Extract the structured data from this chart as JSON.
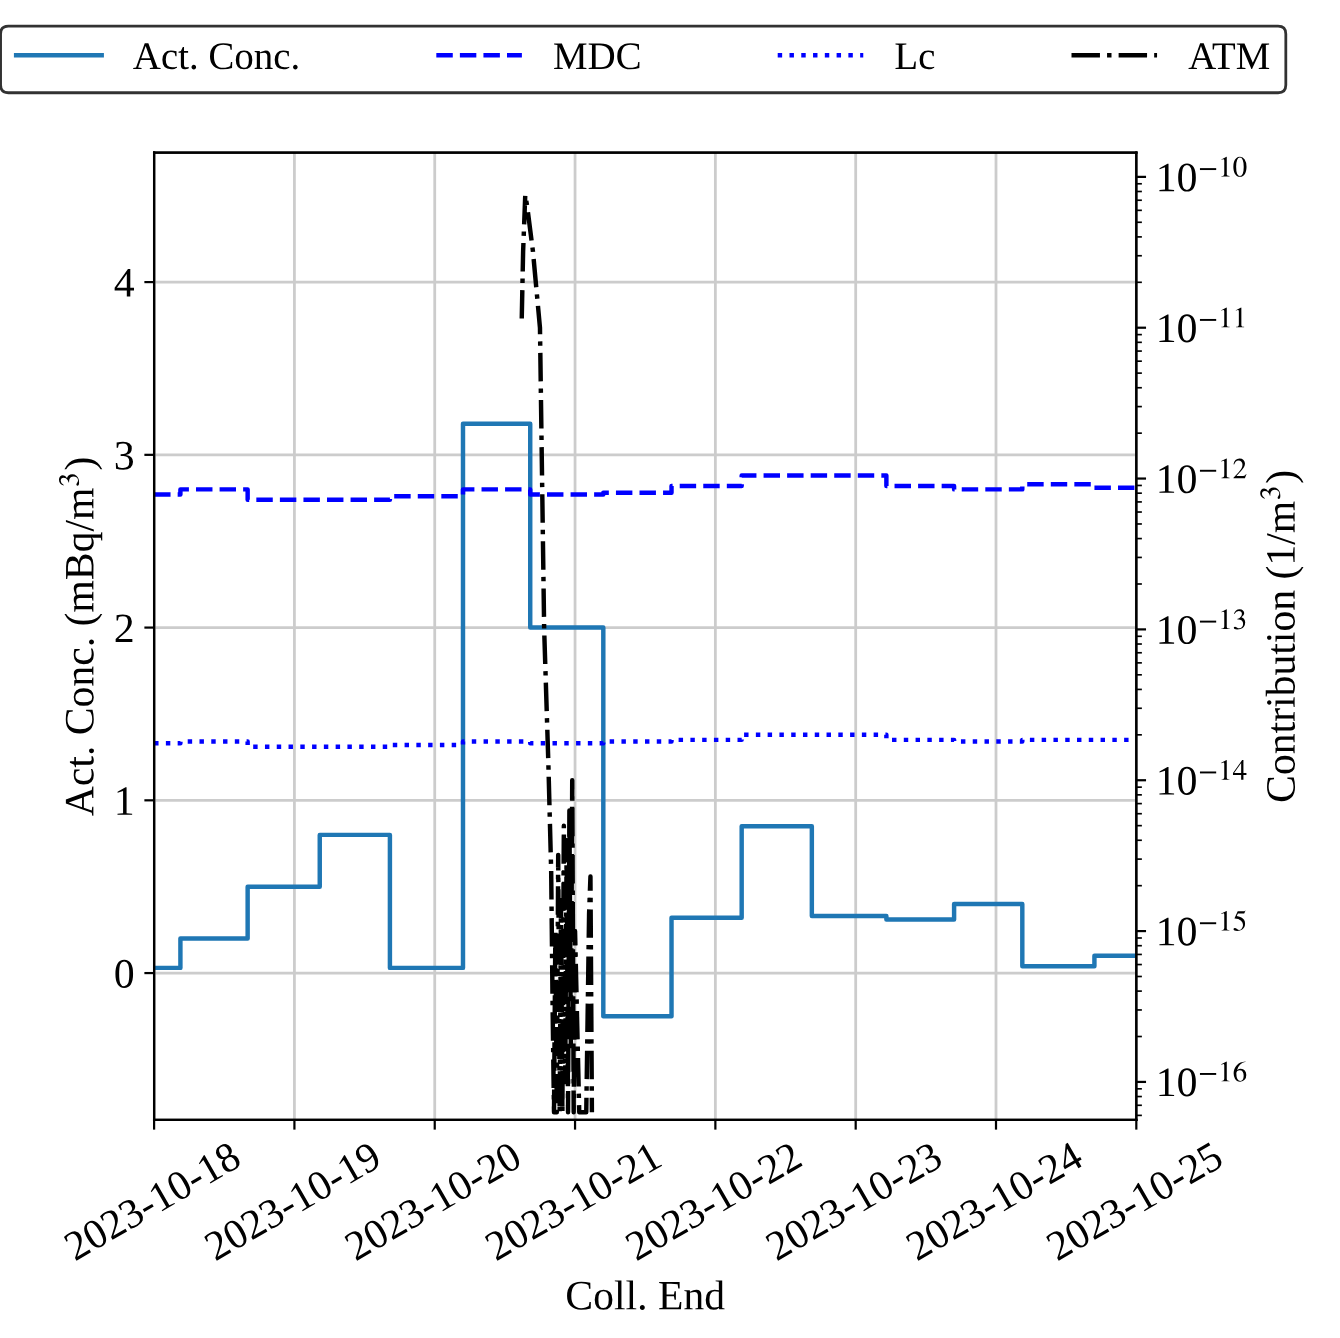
{
  "chart_data": {
    "type": "step",
    "xlabel": "Coll. End",
    "ylabel": "Act. Conc. (mBq/m$^{3}$)",
    "y2label": "Contribution (1/m$^{3}$)",
    "xlim": [
      "2023-10-18",
      "2023-10-25"
    ],
    "xticks": [
      {
        "value": "2023-10-18",
        "label": "2023-10-18"
      },
      {
        "value": "2023-10-19",
        "label": "2023-10-19"
      },
      {
        "value": "2023-10-20",
        "label": "2023-10-20"
      },
      {
        "value": "2023-10-21",
        "label": "2023-10-21"
      },
      {
        "value": "2023-10-22",
        "label": "2023-10-22"
      },
      {
        "value": "2023-10-23",
        "label": "2023-10-23"
      },
      {
        "value": "2023-10-24",
        "label": "2023-10-24"
      },
      {
        "value": "2023-10-25",
        "label": "2023-10-25"
      }
    ],
    "ylim": [
      -0.85,
      4.75
    ],
    "yticks": [
      0,
      1,
      2,
      3,
      4
    ],
    "y2lim": [
      5.6e-17,
      1.45e-10
    ],
    "y2ticks": [
      {
        "value": 1e-16,
        "label": "10$^{−16}$"
      },
      {
        "value": 1e-15,
        "label": "10$^{−15}$"
      },
      {
        "value": 1e-14,
        "label": "10$^{−14}$"
      },
      {
        "value": 1e-13,
        "label": "10$^{−13}$"
      },
      {
        "value": 1e-12,
        "label": "10$^{−12}$"
      },
      {
        "value": 1e-11,
        "label": "10$^{−11}$"
      },
      {
        "value": 1e-10,
        "label": "10$^{−10}$"
      }
    ],
    "log": "y2",
    "grid": true,
    "legend": "top",
    "x": [
      "2023-10-18T00:00",
      "2023-10-18T04:30",
      "2023-10-18T16:00",
      "2023-10-19T04:20",
      "2023-10-19T16:20",
      "2023-10-20T04:50",
      "2023-10-20T16:20",
      "2023-10-21T04:50",
      "2023-10-21T16:30",
      "2023-10-22T04:30",
      "2023-10-22T16:30",
      "2023-10-23T05:15",
      "2023-10-23T16:50",
      "2023-10-24T04:30",
      "2023-10-24T16:50",
      "2023-10-25T00:00"
    ],
    "series": [
      {
        "name": "Act. Conc.",
        "color": "#1f77b4",
        "line_style": "solid",
        "values": [
          0.03,
          0.2,
          0.5,
          0.8,
          0.03,
          3.18,
          2.0,
          -0.25,
          0.32,
          0.85,
          0.33,
          0.31,
          0.4,
          0.04,
          0.1,
          0.1
        ]
      },
      {
        "name": "MDC",
        "color": "#0000ff",
        "line_style": "dashed",
        "values": [
          2.77,
          2.8,
          2.74,
          2.74,
          2.76,
          2.8,
          2.77,
          2.78,
          2.82,
          2.88,
          2.88,
          2.82,
          2.8,
          2.83,
          2.81,
          2.81
        ]
      },
      {
        "name": "Lc",
        "color": "#0000ff",
        "line_style": "dotted",
        "values": [
          1.33,
          1.34,
          1.31,
          1.31,
          1.32,
          1.34,
          1.33,
          1.34,
          1.35,
          1.38,
          1.38,
          1.35,
          1.34,
          1.35,
          1.35,
          1.35
        ]
      },
      {
        "name": "ATM",
        "type": "line",
        "axis": "y2",
        "color": "#000000",
        "line_style": "dashdot",
        "x": [
          "2023-10-20T14:53",
          "2023-10-20T15:07",
          "2023-10-20T15:29",
          "2023-10-20T15:50",
          "2023-10-20T16:48",
          "2023-10-20T18:00",
          "2023-10-20T18:43",
          "2023-10-20T19:26",
          "2023-10-20T19:55",
          "2023-10-20T20:10",
          "2023-10-20T20:24",
          "2023-10-20T20:38",
          "2023-10-20T20:53",
          "2023-10-20T21:07",
          "2023-10-20T21:22",
          "2023-10-20T21:36",
          "2023-10-20T21:50",
          "2023-10-20T22:05",
          "2023-10-20T22:19",
          "2023-10-20T22:34",
          "2023-10-20T22:48",
          "2023-10-20T23:02",
          "2023-10-20T23:17",
          "2023-10-20T23:31",
          "2023-10-20T23:46",
          "2023-10-21T00:00",
          "2023-10-21T00:43",
          "2023-10-21T01:55",
          "2023-10-21T02:24",
          "2023-10-21T02:38",
          "2023-10-21T02:53"
        ],
        "values": [
          1.15e-11,
          3.2e-11,
          7.6e-11,
          6.3e-11,
          3.2e-11,
          1e-11,
          1e-13,
          1.3e-14,
          2.5e-15,
          3e-16,
          6.3e-17,
          1e-15,
          6.3e-17,
          3.2e-15,
          6.3e-17,
          1.6e-15,
          6.3e-17,
          5e-15,
          1e-16,
          4e-15,
          6.3e-17,
          6.3e-15,
          1.6e-16,
          1e-14,
          6.3e-17,
          1e-15,
          6.3e-17,
          6.3e-17,
          1.3e-15,
          2.3e-15,
          6.3e-17
        ]
      }
    ]
  }
}
